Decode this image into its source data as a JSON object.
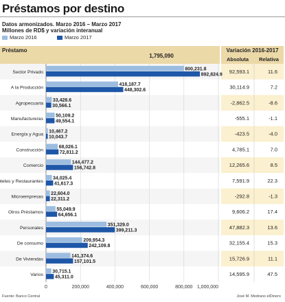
{
  "title": "Préstamos por destino",
  "subtitle_1": "Datos armonizados. Marzo 2016 – Marzo 2017",
  "subtitle_2": "Millones de RD$ y variación interanual",
  "footer_source": "Fuente: Banco Central",
  "footer_credit": "José M. Medrano elDinero",
  "colors": {
    "series_2016": "#9dbde0",
    "series_2017": "#1f57a8",
    "header": "#ecd9a8",
    "band": "#f5f5f5",
    "var_band": "#fbf0cf"
  },
  "chart_data": {
    "type": "bar",
    "orientation": "horizontal",
    "header_label": "Préstamo",
    "total_label": "1,795,090",
    "variation_header": "Variación 2016-2017",
    "absolute_header": "Absoluta",
    "relative_header": "Relativa",
    "xlim": [
      0,
      1000000
    ],
    "xticks": [
      0,
      200000,
      400000,
      600000,
      800000,
      1000000
    ],
    "xtick_labels": [
      "0",
      "200,000",
      "400,000",
      "600,000",
      "800,000",
      "1,000,000"
    ],
    "series": [
      {
        "name": "Marzo 2016",
        "values": [
          800231.8,
          418187.7,
          33428.6,
          50109.2,
          10467.2,
          68026.1,
          144477.2,
          34025.4,
          22604.0,
          55049.9,
          351329.0,
          209954.3,
          141374.6,
          30715.1
        ]
      },
      {
        "name": "Marzo 2017",
        "values": [
          892824.9,
          448302.6,
          30566.1,
          49554.1,
          10043.7,
          72811.2,
          156742.8,
          41617.3,
          22311.2,
          64656.1,
          399211.3,
          242109.8,
          157101.5,
          45311.0
        ]
      }
    ],
    "rows": [
      {
        "category": "Sector Privado",
        "v2016": "800,231.8",
        "v2017": "892,824.9",
        "absolute": "92,593.1",
        "relative": "11.6"
      },
      {
        "category": "A la Producción",
        "v2016": "418,187.7",
        "v2017": "448,302.6",
        "absolute": "30,114.9",
        "relative": "7.2"
      },
      {
        "category": "Agropecuaria",
        "v2016": "33,428.6",
        "v2017": "30,566.1",
        "absolute": "-2,862.5",
        "relative": "-8.6"
      },
      {
        "category": "Manufactureras",
        "v2016": "50,109.2",
        "v2017": "49,554.1",
        "absolute": "-555.1",
        "relative": "-1.1"
      },
      {
        "category": "Energía y Agua",
        "v2016": "10,467.2",
        "v2017": "10,043.7",
        "absolute": "-423.5",
        "relative": "-4.0"
      },
      {
        "category": "Construcción",
        "v2016": "68,026.1",
        "v2017": "72,811.2",
        "absolute": "4,785.1",
        "relative": "7.0"
      },
      {
        "category": "Comercio",
        "v2016": "144,477.2",
        "v2017": "156,742.8",
        "absolute": "12,265.6",
        "relative": "8.5"
      },
      {
        "category": "Hoteles y Restaurantes",
        "v2016": "34,025.4",
        "v2017": "41,617.3",
        "absolute": "7,591.9",
        "relative": "22.3"
      },
      {
        "category": "Microempresas",
        "v2016": "22,604.0",
        "v2017": "22,311.2",
        "absolute": "-292.8",
        "relative": "-1.3"
      },
      {
        "category": "Otros Préstamos",
        "v2016": "55,049.9",
        "v2017": "64,656.1",
        "absolute": "9,606.2",
        "relative": "17.4"
      },
      {
        "category": "Personales",
        "v2016": "351,329.0",
        "v2017": "399,211.3",
        "absolute": "47,882.3",
        "relative": "13.6"
      },
      {
        "category": "De consumo",
        "v2016": "209,954.3",
        "v2017": "242,109.8",
        "absolute": "32,155.4",
        "relative": "15.3"
      },
      {
        "category": "De Viviendas",
        "v2016": "141,374.6",
        "v2017": "157,101.5",
        "absolute": "15,726.9",
        "relative": "11.1"
      },
      {
        "category": "Varios",
        "v2016": "30,715.1",
        "v2017": "45,311.0",
        "absolute": "14,595.9",
        "relative": "47.5"
      }
    ]
  }
}
